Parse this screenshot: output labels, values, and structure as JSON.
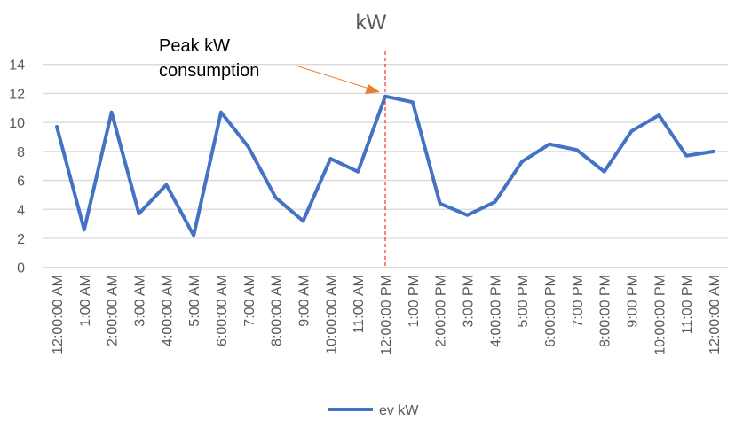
{
  "chart_data": {
    "type": "line",
    "title": "kW",
    "xlabel": "",
    "ylabel": "",
    "ylim": [
      0,
      14
    ],
    "yticks": [
      0,
      2,
      4,
      6,
      8,
      10,
      12,
      14
    ],
    "grid": true,
    "legend_position": "bottom",
    "categories": [
      "12:00:00 AM",
      "1:00 AM",
      "2:00:00 AM",
      "3:00 AM",
      "4:00:00 AM",
      "5:00 AM",
      "6:00:00 AM",
      "7:00 AM",
      "8:00:00 AM",
      "9:00 AM",
      "10:00:00 AM",
      "11:00 AM",
      "12:00:00 PM",
      "1:00 PM",
      "2:00:00 PM",
      "3:00 PM",
      "4:00:00 PM",
      "5:00 PM",
      "6:00:00 PM",
      "7:00 PM",
      "8:00:00 PM",
      "9:00 PM",
      "10:00:00 PM",
      "11:00 PM",
      "12:00:00 AM"
    ],
    "series": [
      {
        "name": "ev kW",
        "color": "#4472C4",
        "values": [
          9.7,
          2.6,
          10.7,
          3.7,
          5.7,
          2.2,
          10.7,
          8.3,
          4.8,
          3.2,
          7.5,
          6.6,
          11.8,
          11.4,
          4.4,
          3.6,
          4.5,
          7.3,
          8.5,
          8.1,
          6.6,
          9.4,
          10.5,
          7.7,
          8.0
        ]
      }
    ],
    "annotations": [
      {
        "text_lines": [
          "Peak kW",
          "consumption"
        ],
        "points_to_category_index": 12,
        "arrow_color": "#ED7D31",
        "marker_line_color": "#FF0000"
      }
    ]
  }
}
